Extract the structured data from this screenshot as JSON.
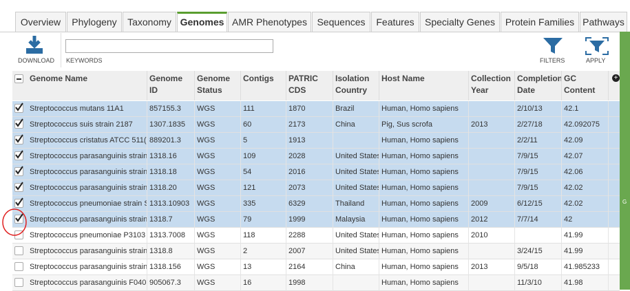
{
  "tabs": [
    "Overview",
    "Phylogeny",
    "Taxonomy",
    "Genomes",
    "AMR Phenotypes",
    "Sequences",
    "Features",
    "Specialty Genes",
    "Protein Families",
    "Pathways"
  ],
  "active_tab": 3,
  "toolbar": {
    "download": "DOWNLOAD",
    "keywords": "KEYWORDS",
    "filters": "FILTERS",
    "apply": "APPLY"
  },
  "sidebar_label": "G",
  "table": {
    "columns": [
      "Genome Name",
      "Genome ID",
      "Genome Status",
      "Contigs",
      "PATRIC CDS",
      "Isolation Country",
      "Host Name",
      "Collection Year",
      "Completion Date",
      "GC Content"
    ],
    "rows": [
      {
        "checked": true,
        "cells": [
          "Streptococcus mutans 11A1",
          "857155.3",
          "WGS",
          "111",
          "1870",
          "Brazil",
          "Human, Homo sapiens",
          null,
          "2/10/13",
          "42.1"
        ]
      },
      {
        "checked": true,
        "cells": [
          "Streptococcus suis strain 2187",
          "1307.1835",
          "WGS",
          "60",
          "2173",
          "China",
          "Pig, Sus scrofa",
          "2013",
          "2/27/18",
          "42.092075"
        ]
      },
      {
        "checked": true,
        "cells": [
          "Streptococcus cristatus ATCC 511(",
          "889201.3",
          "WGS",
          "5",
          "1913",
          null,
          "Human, Homo sapiens",
          null,
          "2/2/11",
          "42.09"
        ]
      },
      {
        "checked": true,
        "cells": [
          "Streptococcus parasanguinis strain",
          "1318.16",
          "WGS",
          "109",
          "2028",
          "United States",
          "Human, Homo sapiens",
          null,
          "7/9/15",
          "42.07"
        ]
      },
      {
        "checked": true,
        "cells": [
          "Streptococcus parasanguinis strain",
          "1318.18",
          "WGS",
          "54",
          "2016",
          "United States",
          "Human, Homo sapiens",
          null,
          "7/9/15",
          "42.06"
        ]
      },
      {
        "checked": true,
        "cells": [
          "Streptococcus parasanguinis strain",
          "1318.20",
          "WGS",
          "121",
          "2073",
          "United States",
          "Human, Homo sapiens",
          null,
          "7/9/15",
          "42.02"
        ]
      },
      {
        "checked": true,
        "cells": [
          "Streptococcus pneumoniae strain S",
          "1313.10903",
          "WGS",
          "335",
          "6329",
          "Thailand",
          "Human, Homo sapiens",
          "2009",
          "6/12/15",
          "42.02"
        ]
      },
      {
        "checked": true,
        "cells": [
          "Streptococcus parasanguinis strain",
          "1318.7",
          "WGS",
          "79",
          "1999",
          "Malaysia",
          "Human, Homo sapiens",
          "2012",
          "7/7/14",
          "42"
        ]
      },
      {
        "checked": false,
        "cells": [
          "Streptococcus pneumoniae P3103",
          "1313.7008",
          "WGS",
          "118",
          "2288",
          "United States",
          "Human, Homo sapiens",
          "2010",
          null,
          "41.99"
        ]
      },
      {
        "checked": false,
        "cells": [
          "Streptococcus parasanguinis strain",
          "1318.8",
          "WGS",
          "2",
          "2007",
          "United States",
          "Human, Homo sapiens",
          null,
          "3/24/15",
          "41.99"
        ]
      },
      {
        "checked": false,
        "cells": [
          "Streptococcus parasanguinis strain",
          "1318.156",
          "WGS",
          "13",
          "2164",
          "China",
          "Human, Homo sapiens",
          "2013",
          "9/5/18",
          "41.985233"
        ]
      },
      {
        "checked": false,
        "cells": [
          "Streptococcus parasanguinis F040",
          "905067.3",
          "WGS",
          "16",
          "1998",
          null,
          "Human, Homo sapiens",
          null,
          "11/3/10",
          "41.98"
        ]
      }
    ]
  }
}
